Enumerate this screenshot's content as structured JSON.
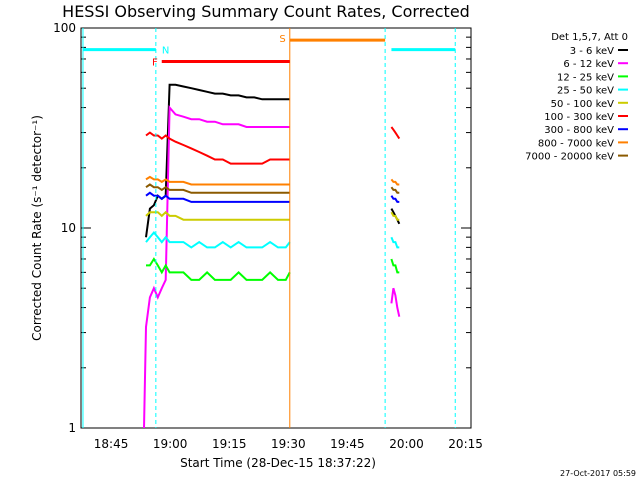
{
  "chart_data": {
    "type": "line",
    "title": "HESSI Observing Summary Count Rates, Corrected",
    "ylabel": "Corrected Count Rate (s⁻¹ detector⁻¹)",
    "xlabel": "Start Time (28-Dec-15 18:37:22)",
    "x_unit": "minutes after 18:37:22",
    "xlim": [
      0,
      99
    ],
    "ylim": [
      1,
      100
    ],
    "y_scale": "log",
    "y_ticks": [
      {
        "value": 1,
        "label": "1"
      },
      {
        "value": 10,
        "label": "10"
      },
      {
        "value": 100,
        "label": "100"
      }
    ],
    "x_ticks": [
      {
        "value": 7.63,
        "label": "18:45"
      },
      {
        "value": 22.63,
        "label": "19:00"
      },
      {
        "value": 37.63,
        "label": "19:15"
      },
      {
        "value": 52.63,
        "label": "19:30"
      },
      {
        "value": 67.63,
        "label": "19:45"
      },
      {
        "value": 82.63,
        "label": "20:00"
      },
      {
        "value": 97.63,
        "label": "20:15"
      }
    ],
    "legend_title": "Det 1,5,7, Att 0",
    "legend_position": "right",
    "series": [
      {
        "name": "3 - 6 keV",
        "color": "#000000",
        "segments": [
          {
            "x": [
              16.5,
              17.5,
              18.5,
              19.5,
              20.5,
              21.5,
              22.5,
              24,
              26,
              28,
              30,
              32,
              34,
              36,
              38,
              40,
              42,
              44,
              46,
              48,
              50,
              52,
              53.0
            ],
            "y": [
              9.0,
              12.5,
              13.0,
              14.5,
              14.0,
              14.5,
              52,
              52,
              51,
              50,
              49,
              48,
              47,
              47,
              46,
              46,
              45,
              45,
              44,
              44,
              44,
              44,
              44
            ]
          },
          {
            "x": [
              78.8,
              79.3,
              79.8,
              80.3,
              80.8
            ],
            "y": [
              12.5,
              12.0,
              11.5,
              11.0,
              10.5
            ]
          }
        ]
      },
      {
        "name": "6 - 12 keV",
        "color": "#ff00ff",
        "segments": [
          {
            "x": [
              16.0,
              16.5,
              17.5,
              18.5,
              19.5,
              20.5,
              21.5,
              22.5,
              24,
              26,
              28,
              30,
              32,
              34,
              36,
              38,
              40,
              42,
              44,
              46,
              48,
              50,
              52,
              53.0
            ],
            "y": [
              1.0,
              3.2,
              4.5,
              5.0,
              4.5,
              5.0,
              5.5,
              40,
              37,
              36,
              35,
              35,
              34,
              34,
              33,
              33,
              33,
              32,
              32,
              32,
              32,
              32,
              32,
              32
            ]
          },
          {
            "x": [
              78.8,
              79.3,
              79.8,
              80.3,
              80.8
            ],
            "y": [
              4.2,
              5.0,
              4.6,
              4.0,
              3.6
            ]
          }
        ]
      },
      {
        "name": "12 - 25 keV",
        "color": "#00ff00",
        "segments": [
          {
            "x": [
              16.5,
              17.5,
              18.5,
              19.5,
              20.5,
              21.5,
              22.5,
              24,
              26,
              28,
              30,
              32,
              34,
              36,
              38,
              40,
              42,
              44,
              46,
              48,
              50,
              52,
              53.0
            ],
            "y": [
              6.5,
              6.5,
              7.0,
              6.5,
              6.0,
              6.5,
              6.0,
              6.0,
              6.0,
              5.5,
              5.5,
              6.0,
              5.5,
              5.5,
              5.5,
              6.0,
              5.5,
              5.5,
              5.5,
              6.0,
              5.5,
              5.5,
              6.0
            ]
          },
          {
            "x": [
              78.8,
              79.3,
              79.8,
              80.3,
              80.8
            ],
            "y": [
              7.0,
              6.5,
              6.5,
              6.0,
              6.0
            ]
          }
        ]
      },
      {
        "name": "25 - 50 keV",
        "color": "#00ffff",
        "segments": [
          {
            "x": [
              16.5,
              17.5,
              18.5,
              19.5,
              20.5,
              21.5,
              22.5,
              24,
              26,
              28,
              30,
              32,
              34,
              36,
              38,
              40,
              42,
              44,
              46,
              48,
              50,
              52,
              53.0
            ],
            "y": [
              8.5,
              9.0,
              9.5,
              9.0,
              8.5,
              9.0,
              8.5,
              8.5,
              8.5,
              8.0,
              8.5,
              8.0,
              8.0,
              8.5,
              8.0,
              8.5,
              8.0,
              8.0,
              8.0,
              8.5,
              8.0,
              8.0,
              8.5
            ]
          },
          {
            "x": [
              78.8,
              79.3,
              79.8,
              80.3,
              80.8
            ],
            "y": [
              9.0,
              8.5,
              8.5,
              8.0,
              8.0
            ]
          }
        ]
      },
      {
        "name": "50 - 100 keV",
        "color": "#cccc00",
        "segments": [
          {
            "x": [
              16.5,
              17.5,
              18.5,
              19.5,
              20.5,
              21.5,
              22.5,
              24,
              26,
              28,
              30,
              32,
              34,
              36,
              38,
              40,
              42,
              44,
              46,
              48,
              50,
              52,
              53.0
            ],
            "y": [
              11.5,
              12.0,
              12.0,
              12.0,
              11.5,
              12.0,
              11.5,
              11.5,
              11.0,
              11.0,
              11.0,
              11.0,
              11.0,
              11.0,
              11.0,
              11.0,
              11.0,
              11.0,
              11.0,
              11.0,
              11.0,
              11.0,
              11.0
            ]
          },
          {
            "x": [
              78.8,
              79.3,
              79.8,
              80.3,
              80.8
            ],
            "y": [
              12.0,
              11.5,
              11.5,
              11.0,
              11.0
            ]
          }
        ]
      },
      {
        "name": "100 - 300 keV",
        "color": "#ff0000",
        "segments": [
          {
            "x": [
              16.5,
              17.5,
              18.5,
              19.5,
              20.5,
              21.5,
              22.5,
              24,
              26,
              28,
              30,
              32,
              34,
              36,
              38,
              40,
              42,
              44,
              46,
              48,
              50,
              52,
              53.0
            ],
            "y": [
              29,
              30,
              29,
              29,
              28,
              29,
              28,
              27,
              26,
              25,
              24,
              23,
              22,
              22,
              21,
              21,
              21,
              21,
              21,
              22,
              22,
              22,
              22
            ]
          },
          {
            "x": [
              78.8,
              79.3,
              79.8,
              80.3,
              80.8
            ],
            "y": [
              32,
              31,
              30,
              29,
              28
            ]
          }
        ]
      },
      {
        "name": "300 - 800 keV",
        "color": "#0000ff",
        "segments": [
          {
            "x": [
              16.5,
              17.5,
              18.5,
              19.5,
              20.5,
              21.5,
              22.5,
              24,
              26,
              28,
              30,
              32,
              34,
              36,
              38,
              40,
              42,
              44,
              46,
              48,
              50,
              52,
              53.0
            ],
            "y": [
              14.5,
              15.0,
              14.5,
              14.5,
              14.0,
              14.5,
              14.0,
              14.0,
              14.0,
              13.5,
              13.5,
              13.5,
              13.5,
              13.5,
              13.5,
              13.5,
              13.5,
              13.5,
              13.5,
              13.5,
              13.5,
              13.5,
              13.5
            ]
          },
          {
            "x": [
              78.8,
              79.3,
              79.8,
              80.3,
              80.8
            ],
            "y": [
              14.5,
              14.0,
              14.0,
              13.5,
              13.5
            ]
          }
        ]
      },
      {
        "name": "800 - 7000 keV",
        "color": "#ff8000",
        "segments": [
          {
            "x": [
              16.5,
              17.5,
              18.5,
              19.5,
              20.5,
              21.5,
              22.5,
              24,
              26,
              28,
              30,
              32,
              34,
              36,
              38,
              40,
              42,
              44,
              46,
              48,
              50,
              52,
              53.0
            ],
            "y": [
              17.5,
              18.0,
              17.5,
              17.5,
              17.0,
              17.5,
              17.0,
              17.0,
              17.0,
              16.5,
              16.5,
              16.5,
              16.5,
              16.5,
              16.5,
              16.5,
              16.5,
              16.5,
              16.5,
              16.5,
              16.5,
              16.5,
              16.5
            ]
          },
          {
            "x": [
              78.8,
              79.3,
              79.8,
              80.3,
              80.8
            ],
            "y": [
              17.5,
              17.0,
              17.0,
              16.5,
              16.5
            ]
          }
        ]
      },
      {
        "name": "7000 - 20000 keV",
        "color": "#8b5a00",
        "segments": [
          {
            "x": [
              16.5,
              17.5,
              18.5,
              19.5,
              20.5,
              21.5,
              22.5,
              24,
              26,
              28,
              30,
              32,
              34,
              36,
              38,
              40,
              42,
              44,
              46,
              48,
              50,
              52,
              53.0
            ],
            "y": [
              16.0,
              16.5,
              16.0,
              16.0,
              15.5,
              16.0,
              15.5,
              15.5,
              15.5,
              15.0,
              15.0,
              15.0,
              15.0,
              15.0,
              15.0,
              15.0,
              15.0,
              15.0,
              15.0,
              15.0,
              15.0,
              15.0,
              15.0
            ]
          },
          {
            "x": [
              78.8,
              79.3,
              79.8,
              80.3,
              80.8
            ],
            "y": [
              16.0,
              15.5,
              15.5,
              15.0,
              15.0
            ]
          }
        ]
      }
    ],
    "annotations": [
      {
        "label": "N",
        "color": "#00ffff",
        "x": 19.0
      },
      {
        "label": "F",
        "color": "#ff0000",
        "x": 20.5
      },
      {
        "label": "S",
        "color": "#ff8000",
        "x": 53.0
      }
    ],
    "flag_bars": [
      {
        "color": "#00ffff",
        "y": 78,
        "x": [
          0.5,
          19.0
        ]
      },
      {
        "color": "#00ffff",
        "y": 78,
        "x": [
          78.8,
          95.0
        ]
      },
      {
        "color": "#ff0000",
        "y": 68,
        "x": [
          20.5,
          53.0
        ]
      },
      {
        "color": "#ff8000",
        "y": 87,
        "x": [
          53.0,
          77.2
        ]
      }
    ],
    "vertical_lines": [
      {
        "color": "#00ffff",
        "style": "solid",
        "x": 0.5
      },
      {
        "color": "#00ffff",
        "style": "dashed",
        "x": 19.0
      },
      {
        "color": "#ff8000",
        "style": "solid",
        "x": 53.0
      },
      {
        "color": "#00ffff",
        "style": "dashed",
        "x": 77.2
      },
      {
        "color": "#00ffff",
        "style": "dashed",
        "x": 95.0
      }
    ]
  },
  "footer": {
    "timestamp": "27-Oct-2017 05:59"
  }
}
